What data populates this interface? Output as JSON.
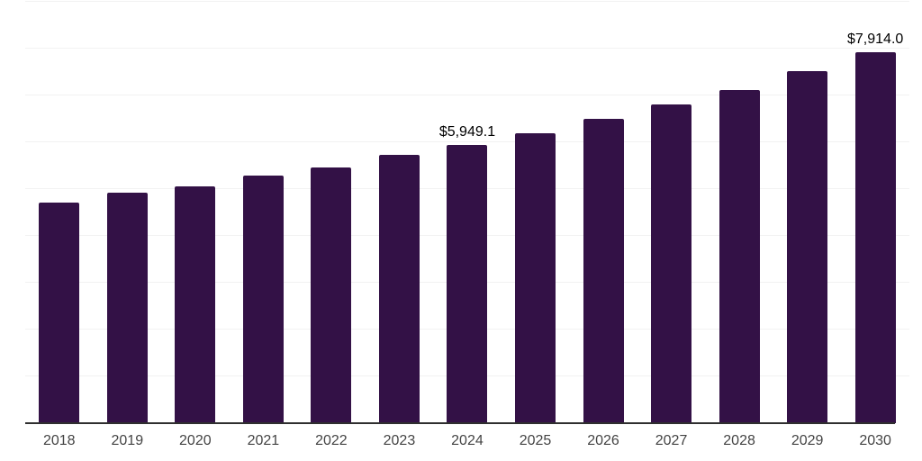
{
  "chart_data": {
    "type": "bar",
    "title": "",
    "xlabel": "",
    "ylabel": "",
    "categories": [
      "2018",
      "2019",
      "2020",
      "2021",
      "2022",
      "2023",
      "2024",
      "2025",
      "2026",
      "2027",
      "2028",
      "2029",
      "2030"
    ],
    "values": [
      4720,
      4915,
      5050,
      5280,
      5470,
      5725,
      5949.1,
      6200,
      6505,
      6815,
      7125,
      7520,
      7914.0
    ],
    "value_labels": {
      "2024": "$5,949.1",
      "2030": "$7,914.0"
    },
    "ylim": [
      0,
      9000
    ],
    "gridline_step": 1000,
    "grid": "horizontal-only",
    "legend": "none",
    "y_axis_tick_labels": "none",
    "colors": {
      "bar": "#331146",
      "axis_line": "#2f2f2f",
      "gridline": "#f2f2f2",
      "tick_label": "#444444",
      "value_label": "#000000",
      "background": "#ffffff"
    }
  }
}
